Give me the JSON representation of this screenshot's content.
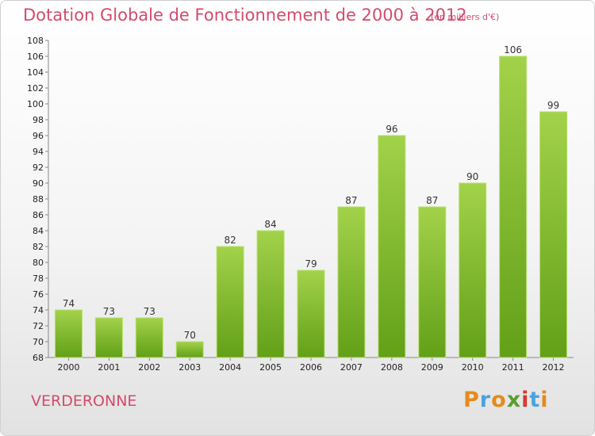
{
  "header": {
    "title": "Dotation Globale de Fonctionnement de 2000 à 2012",
    "unit": "(en milliers d'€)"
  },
  "footer": {
    "commune": "VERDERONNE",
    "logo": "Proxiti"
  },
  "colors": {
    "title": "#d44a6e",
    "bar_light": "#a2d24a",
    "bar_dark": "#62a018",
    "logo_letters": [
      "#e8891b",
      "#4aa3df",
      "#e8891b",
      "#5b9e2f",
      "#d33a2c",
      "#4aa3df",
      "#e8891b"
    ]
  },
  "chart_data": {
    "type": "bar",
    "categories": [
      "2000",
      "2001",
      "2002",
      "2003",
      "2004",
      "2005",
      "2006",
      "2007",
      "2008",
      "2009",
      "2010",
      "2011",
      "2012"
    ],
    "values": [
      74,
      73,
      73,
      70,
      82,
      84,
      79,
      87,
      96,
      87,
      90,
      106,
      99
    ],
    "title": "Dotation Globale de Fonctionnement de 2000 à 2012",
    "ylabel": "(en milliers d'€)",
    "ylim": [
      68,
      108
    ],
    "yticks": [
      68,
      70,
      72,
      74,
      76,
      78,
      80,
      82,
      84,
      86,
      88,
      90,
      92,
      94,
      96,
      98,
      100,
      102,
      104,
      106,
      108
    ],
    "grid": false,
    "data_labels": true
  }
}
